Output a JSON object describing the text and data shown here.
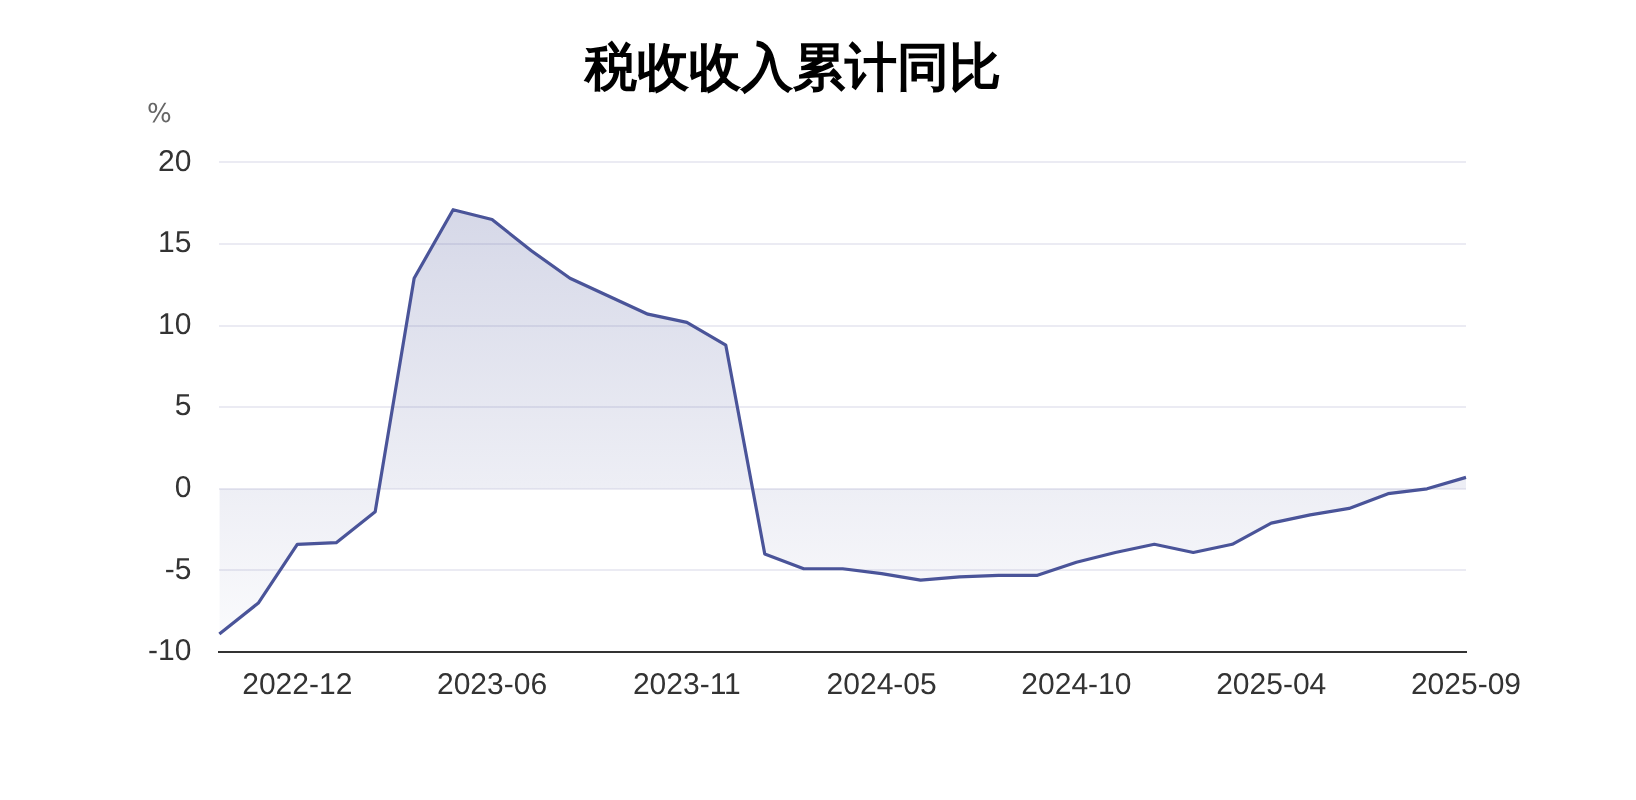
{
  "chart_data": {
    "type": "area",
    "title": "税收收入累计同比",
    "ylabel": "%",
    "categories": [
      null,
      null,
      "2022-12",
      null,
      null,
      null,
      null,
      "2023-06",
      null,
      null,
      null,
      null,
      "2023-11",
      null,
      null,
      null,
      null,
      "2024-05",
      null,
      null,
      null,
      null,
      "2024-10",
      null,
      null,
      null,
      null,
      "2025-04",
      null,
      null,
      null,
      null,
      "2025-09"
    ],
    "series": [
      {
        "color": "#4a5499",
        "values": [
          -8.9,
          -7.0,
          -3.4,
          -3.3,
          -1.4,
          12.9,
          17.1,
          16.5,
          14.6,
          12.9,
          11.8,
          10.7,
          10.2,
          8.8,
          -4.0,
          -4.9,
          -4.9,
          -5.2,
          -5.6,
          -5.4,
          -5.3,
          -5.3,
          -4.5,
          -3.9,
          -3.4,
          -3.9,
          -3.4,
          -2.1,
          -1.6,
          -1.2,
          -0.3,
          0.0,
          0.7
        ]
      }
    ],
    "ylim": [
      -10,
      20
    ],
    "yticks": [
      -10,
      -5,
      0,
      5,
      10,
      15,
      20
    ],
    "grid": "y",
    "legend": false,
    "marker": "none",
    "line_style": "solid"
  }
}
